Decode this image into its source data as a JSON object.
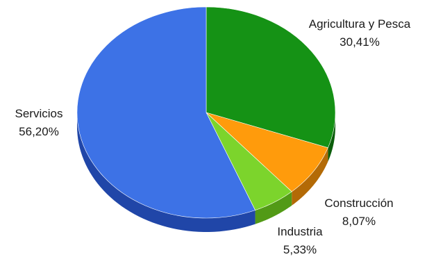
{
  "chart_data": {
    "type": "pie",
    "title": "",
    "categories": [
      "Agricultura y Pesca",
      "Construcción",
      "Industria",
      "Servicios"
    ],
    "values": [
      30.41,
      8.07,
      5.33,
      56.2
    ],
    "value_labels": [
      "30,41%",
      "8,07%",
      "5,33%",
      "56,20%"
    ],
    "colors": [
      "#159215",
      "#ff9b0c",
      "#7cd42c",
      "#3d72e6"
    ],
    "side_colors": [
      "#0c5e0c",
      "#b36a06",
      "#529a16",
      "#2046a8"
    ],
    "start_angle": "12 o'clock, clockwise",
    "style": "3d",
    "legend": "none"
  }
}
